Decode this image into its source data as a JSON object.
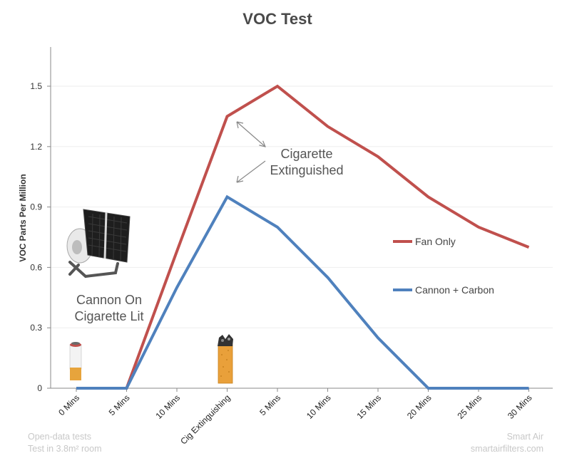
{
  "chart_data": {
    "type": "line",
    "title": "VOC Test",
    "xlabel": "",
    "ylabel": "VOC Parts Per Million",
    "categories": [
      "0 Mins",
      "5 Mins",
      "10 Mins",
      "Cig Extinguishing",
      "5 Mins",
      "10 Mins",
      "15 Mins",
      "20 Mins",
      "25 Mins",
      "30 Mins"
    ],
    "ylim": [
      0,
      1.65
    ],
    "yticks": [
      "0",
      "0.3",
      "0.6",
      "0.9",
      "1.2",
      "1.5"
    ],
    "grid": "horizontal",
    "legend_position": "right",
    "series": [
      {
        "name": "Fan Only",
        "color": "#c0504d",
        "values": [
          0,
          0,
          0.68,
          1.35,
          1.5,
          1.3,
          1.15,
          0.95,
          0.8,
          0.7
        ]
      },
      {
        "name": "Cannon + Carbon",
        "color": "#4f81bd",
        "values": [
          0,
          0,
          0.5,
          0.95,
          0.8,
          0.55,
          0.25,
          0,
          0,
          0
        ]
      }
    ],
    "annotations": {
      "cannon": [
        "Cannon On",
        "Cigarette Lit"
      ],
      "extinguished": [
        "Cigarette",
        "Extinguished"
      ]
    }
  },
  "footer": {
    "left": [
      "Open-data tests",
      "Test in 3.8m² room"
    ],
    "right": [
      "Smart Air",
      "smartairfilters.com"
    ]
  },
  "icons": [
    "air-purifier-icon",
    "cigarette-lit-icon",
    "cigarette-extinguished-icon"
  ]
}
